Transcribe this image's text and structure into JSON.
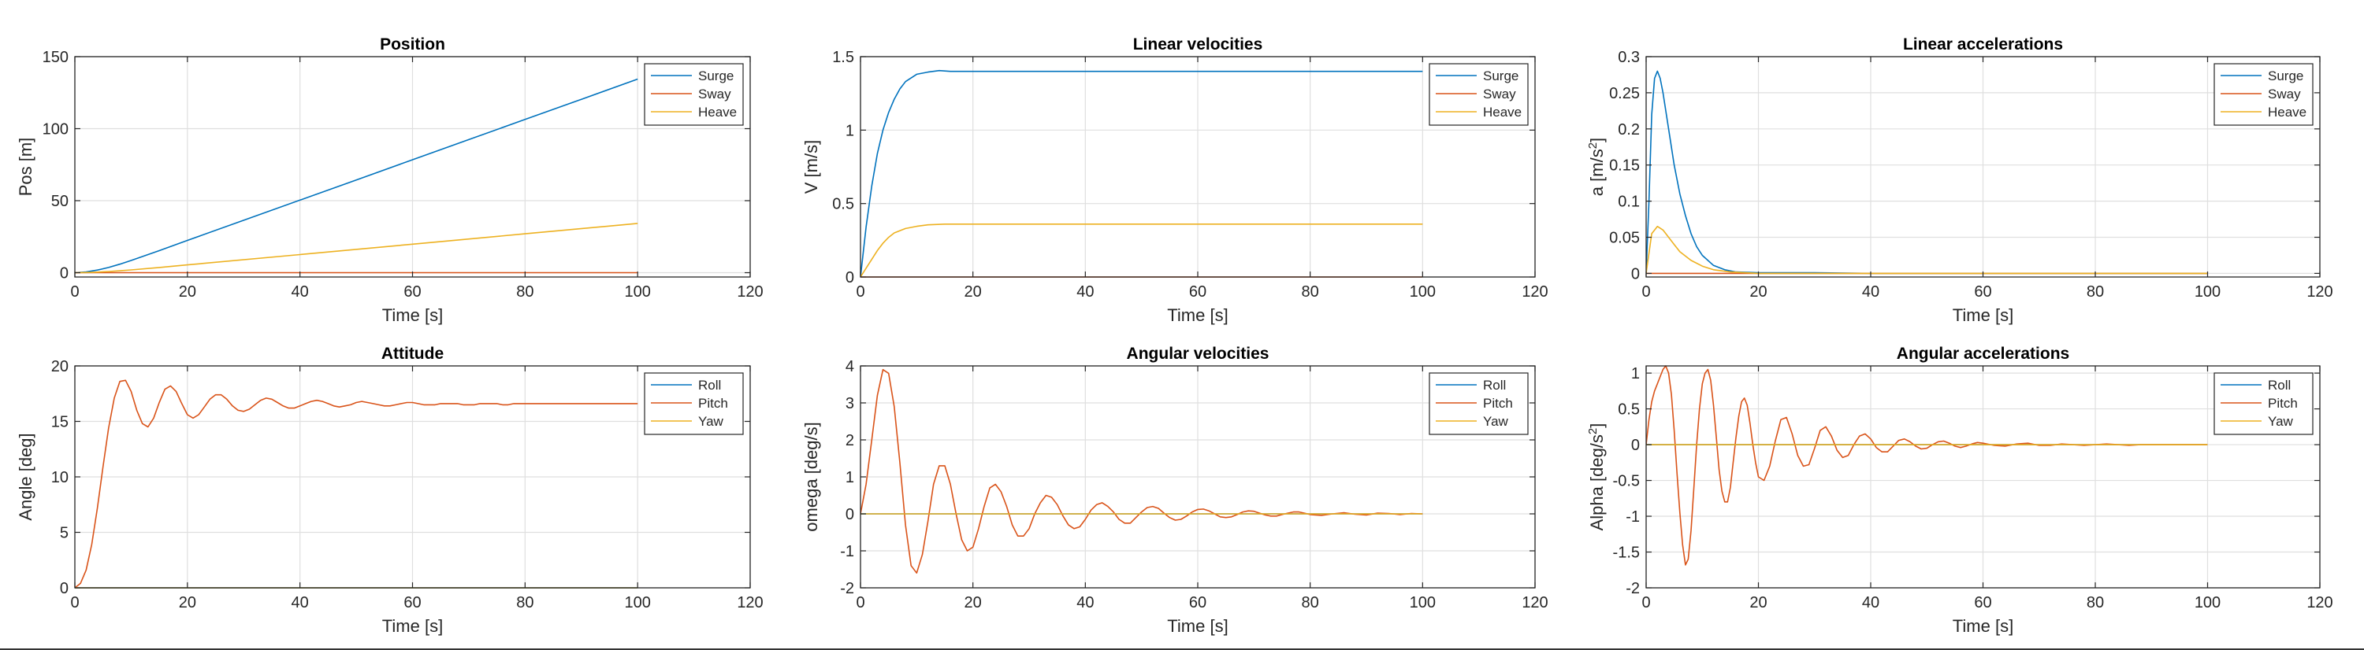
{
  "chart_data": [
    {
      "type": "line",
      "title": "Position",
      "xlabel": "Time [s]",
      "ylabel": "Pos [m]",
      "xlim": [
        0,
        120
      ],
      "ylim": [
        -3,
        150
      ],
      "xticks": [
        0,
        20,
        40,
        60,
        80,
        100,
        120
      ],
      "yticks": [
        0,
        50,
        100,
        150
      ],
      "legend": "top-right",
      "grid": true,
      "series": [
        {
          "name": "Surge",
          "color": "#0072bd",
          "x": [
            0,
            2,
            4,
            6,
            8,
            10,
            15,
            20,
            30,
            40,
            50,
            60,
            70,
            80,
            90,
            100
          ],
          "y": [
            0,
            0.5,
            1.8,
            3.6,
            5.9,
            8.5,
            15.3,
            22.4,
            36.4,
            50.4,
            64.4,
            78.4,
            92.4,
            106.4,
            120.4,
            134.4
          ]
        },
        {
          "name": "Sway",
          "color": "#d95319",
          "x": [
            0,
            100
          ],
          "y": [
            0,
            0
          ]
        },
        {
          "name": "Heave",
          "color": "#edb120",
          "x": [
            0,
            2,
            4,
            6,
            8,
            10,
            15,
            20,
            40,
            60,
            80,
            100
          ],
          "y": [
            0,
            0.1,
            0.4,
            0.8,
            1.3,
            1.9,
            3.6,
            5.4,
            12.6,
            19.8,
            27.0,
            34.2
          ]
        }
      ]
    },
    {
      "type": "line",
      "title": "Linear velocities",
      "xlabel": "Time [s]",
      "ylabel": "V [m/s]",
      "xlim": [
        0,
        120
      ],
      "ylim": [
        0,
        1.5
      ],
      "xticks": [
        0,
        20,
        40,
        60,
        80,
        100,
        120
      ],
      "yticks": [
        0,
        0.5,
        1,
        1.5
      ],
      "legend": "top-right",
      "grid": true,
      "series": [
        {
          "name": "Surge",
          "color": "#0072bd",
          "x": [
            0,
            1,
            2,
            3,
            4,
            5,
            6,
            7,
            8,
            10,
            12,
            14,
            16,
            20,
            30,
            40,
            60,
            80,
            100
          ],
          "y": [
            0,
            0.34,
            0.62,
            0.84,
            1.0,
            1.12,
            1.21,
            1.28,
            1.33,
            1.38,
            1.395,
            1.405,
            1.4,
            1.4,
            1.4,
            1.4,
            1.4,
            1.4,
            1.4
          ]
        },
        {
          "name": "Sway",
          "color": "#d95319",
          "x": [
            0,
            100
          ],
          "y": [
            0,
            0
          ]
        },
        {
          "name": "Heave",
          "color": "#edb120",
          "x": [
            0,
            1,
            2,
            3,
            4,
            5,
            6,
            8,
            10,
            12,
            15,
            20,
            30,
            40,
            60,
            80,
            100
          ],
          "y": [
            0,
            0.06,
            0.12,
            0.18,
            0.23,
            0.27,
            0.3,
            0.33,
            0.345,
            0.355,
            0.36,
            0.36,
            0.36,
            0.36,
            0.36,
            0.36,
            0.36
          ]
        }
      ]
    },
    {
      "type": "line",
      "title": "Linear accelerations",
      "xlabel": "Time [s]",
      "ylabel": "a [m/s²]",
      "xlim": [
        0,
        120
      ],
      "ylim": [
        -0.005,
        0.3
      ],
      "xticks": [
        0,
        20,
        40,
        60,
        80,
        100,
        120
      ],
      "yticks": [
        0,
        0.05,
        0.1,
        0.15,
        0.2,
        0.25,
        0.3
      ],
      "legend": "top-right",
      "grid": true,
      "series": [
        {
          "name": "Surge",
          "color": "#0072bd",
          "x": [
            0,
            0.5,
            1,
            1.5,
            2,
            2.5,
            3,
            4,
            5,
            6,
            7,
            8,
            9,
            10,
            12,
            14,
            16,
            20,
            30,
            40,
            60,
            80,
            100
          ],
          "y": [
            0,
            0.1,
            0.22,
            0.27,
            0.28,
            0.27,
            0.25,
            0.2,
            0.15,
            0.11,
            0.08,
            0.055,
            0.037,
            0.025,
            0.011,
            0.005,
            0.002,
            0.001,
            0.001,
            0,
            0,
            0,
            0
          ]
        },
        {
          "name": "Sway",
          "color": "#d95319",
          "x": [
            0,
            100
          ],
          "y": [
            0,
            0
          ]
        },
        {
          "name": "Heave",
          "color": "#edb120",
          "x": [
            0,
            1,
            2,
            3,
            4,
            5,
            6,
            8,
            10,
            12,
            15,
            20,
            40,
            60,
            80,
            100
          ],
          "y": [
            0,
            0.055,
            0.065,
            0.06,
            0.05,
            0.04,
            0.03,
            0.018,
            0.01,
            0.005,
            0.002,
            0,
            0,
            0,
            0,
            0
          ]
        }
      ]
    },
    {
      "type": "line",
      "title": "Attitude",
      "xlabel": "Time [s]",
      "ylabel": "Angle [deg]",
      "xlim": [
        0,
        120
      ],
      "ylim": [
        0,
        20
      ],
      "xticks": [
        0,
        20,
        40,
        60,
        80,
        100,
        120
      ],
      "yticks": [
        0,
        5,
        10,
        15,
        20
      ],
      "legend": "top-right",
      "grid": true,
      "series": [
        {
          "name": "Roll",
          "color": "#0072bd",
          "x": [
            0,
            100
          ],
          "y": [
            0,
            0
          ]
        },
        {
          "name": "Pitch",
          "color": "#d95319",
          "x": [
            0,
            1,
            2,
            3,
            4,
            5,
            6,
            7,
            8,
            9,
            10,
            11,
            12,
            13,
            14,
            15,
            16,
            17,
            18,
            19,
            20,
            21,
            22,
            23,
            24,
            25,
            26,
            27,
            28,
            29,
            30,
            31,
            32,
            33,
            34,
            35,
            36,
            37,
            38,
            39,
            40,
            41,
            42,
            43,
            44,
            45,
            46,
            47,
            48,
            49,
            50,
            51,
            52,
            53,
            54,
            55,
            56,
            57,
            58,
            59,
            60,
            61,
            62,
            63,
            64,
            65,
            66,
            67,
            68,
            69,
            70,
            71,
            72,
            73,
            74,
            75,
            76,
            77,
            78,
            79,
            80,
            82,
            84,
            86,
            88,
            90,
            92,
            94,
            96,
            98,
            100
          ],
          "y": [
            0,
            0.4,
            1.6,
            3.9,
            7.2,
            10.9,
            14.4,
            17.1,
            18.6,
            18.7,
            17.7,
            16.0,
            14.8,
            14.5,
            15.3,
            16.7,
            17.9,
            18.2,
            17.7,
            16.6,
            15.6,
            15.3,
            15.6,
            16.3,
            17.0,
            17.4,
            17.4,
            17.0,
            16.4,
            16.0,
            15.9,
            16.1,
            16.5,
            16.9,
            17.1,
            17.0,
            16.7,
            16.4,
            16.2,
            16.2,
            16.4,
            16.6,
            16.8,
            16.9,
            16.8,
            16.6,
            16.4,
            16.3,
            16.4,
            16.5,
            16.7,
            16.8,
            16.7,
            16.6,
            16.5,
            16.4,
            16.4,
            16.5,
            16.6,
            16.7,
            16.7,
            16.6,
            16.5,
            16.5,
            16.5,
            16.6,
            16.6,
            16.6,
            16.6,
            16.5,
            16.5,
            16.5,
            16.6,
            16.6,
            16.6,
            16.6,
            16.5,
            16.5,
            16.6,
            16.6,
            16.6,
            16.6,
            16.6,
            16.6,
            16.6,
            16.6,
            16.6,
            16.6,
            16.6,
            16.6,
            16.6
          ]
        },
        {
          "name": "Yaw",
          "color": "#edb120",
          "x": [
            0,
            100
          ],
          "y": [
            0,
            0
          ]
        }
      ]
    },
    {
      "type": "line",
      "title": "Angular velocities",
      "xlabel": "Time [s]",
      "ylabel": "omega [deg/s]",
      "xlim": [
        0,
        120
      ],
      "ylim": [
        -2,
        4
      ],
      "xticks": [
        0,
        20,
        40,
        60,
        80,
        100,
        120
      ],
      "yticks": [
        -2,
        -1,
        0,
        1,
        2,
        3,
        4
      ],
      "legend": "top-right",
      "grid": true,
      "series": [
        {
          "name": "Roll",
          "color": "#0072bd",
          "x": [
            0,
            100
          ],
          "y": [
            0,
            0
          ]
        },
        {
          "name": "Pitch",
          "color": "#d95319",
          "x": [
            0,
            1,
            2,
            3,
            4,
            5,
            6,
            7,
            8,
            9,
            10,
            11,
            12,
            13,
            14,
            15,
            16,
            17,
            18,
            19,
            20,
            21,
            22,
            23,
            24,
            25,
            26,
            27,
            28,
            29,
            30,
            31,
            32,
            33,
            34,
            35,
            36,
            37,
            38,
            39,
            40,
            41,
            42,
            43,
            44,
            45,
            46,
            47,
            48,
            49,
            50,
            51,
            52,
            53,
            54,
            55,
            56,
            57,
            58,
            59,
            60,
            61,
            62,
            63,
            64,
            65,
            66,
            67,
            68,
            69,
            70,
            71,
            72,
            73,
            74,
            75,
            76,
            77,
            78,
            79,
            80,
            82,
            84,
            86,
            88,
            90,
            92,
            94,
            96,
            98,
            100
          ],
          "y": [
            0,
            0.8,
            2.0,
            3.2,
            3.9,
            3.8,
            2.9,
            1.4,
            -0.3,
            -1.4,
            -1.6,
            -1.1,
            -0.2,
            0.8,
            1.3,
            1.3,
            0.8,
            0.0,
            -0.7,
            -1.0,
            -0.9,
            -0.4,
            0.2,
            0.7,
            0.8,
            0.6,
            0.2,
            -0.3,
            -0.6,
            -0.6,
            -0.4,
            0.0,
            0.3,
            0.5,
            0.45,
            0.25,
            -0.05,
            -0.3,
            -0.4,
            -0.35,
            -0.15,
            0.1,
            0.25,
            0.3,
            0.2,
            0.05,
            -0.15,
            -0.25,
            -0.25,
            -0.1,
            0.05,
            0.17,
            0.2,
            0.15,
            0.02,
            -0.1,
            -0.17,
            -0.15,
            -0.06,
            0.05,
            0.12,
            0.13,
            0.08,
            0.0,
            -0.08,
            -0.1,
            -0.08,
            -0.02,
            0.05,
            0.08,
            0.07,
            0.02,
            -0.03,
            -0.06,
            -0.06,
            -0.02,
            0.02,
            0.05,
            0.05,
            0.02,
            -0.02,
            -0.04,
            0.0,
            0.03,
            -0.01,
            -0.03,
            0.02,
            0.01,
            -0.02,
            0.01,
            0.0
          ]
        },
        {
          "name": "Yaw",
          "color": "#edb120",
          "x": [
            0,
            100
          ],
          "y": [
            0,
            0
          ]
        }
      ]
    },
    {
      "type": "line",
      "title": "Angular accelerations",
      "xlabel": "Time [s]",
      "ylabel": "Alpha [deg/s²]",
      "xlim": [
        0,
        120
      ],
      "ylim": [
        -2,
        1.1
      ],
      "xticks": [
        0,
        20,
        40,
        60,
        80,
        100,
        120
      ],
      "yticks": [
        -2,
        -1.5,
        -1,
        -0.5,
        0,
        0.5,
        1
      ],
      "legend": "top-right",
      "grid": true,
      "series": [
        {
          "name": "Roll",
          "color": "#0072bd",
          "x": [
            0,
            100
          ],
          "y": [
            0,
            0
          ]
        },
        {
          "name": "Pitch",
          "color": "#d95319",
          "x": [
            0,
            0.5,
            1,
            1.5,
            2,
            2.5,
            3,
            3.5,
            4,
            4.5,
            5,
            5.5,
            6,
            6.5,
            7,
            7.5,
            8,
            8.5,
            9,
            9.5,
            10,
            10.5,
            11,
            11.5,
            12,
            12.5,
            13,
            13.5,
            14,
            14.5,
            15,
            15.5,
            16,
            16.5,
            17,
            17.5,
            18,
            18.5,
            19,
            19.5,
            20,
            21,
            22,
            23,
            24,
            25,
            26,
            27,
            28,
            29,
            30,
            31,
            32,
            33,
            34,
            35,
            36,
            37,
            38,
            39,
            40,
            41,
            42,
            43,
            44,
            45,
            46,
            47,
            48,
            49,
            50,
            51,
            52,
            53,
            54,
            55,
            56,
            57,
            58,
            59,
            60,
            62,
            64,
            66,
            68,
            70,
            72,
            74,
            76,
            78,
            80,
            82,
            84,
            86,
            88,
            90,
            92,
            94,
            96,
            98,
            100
          ],
          "y": [
            0,
            0.35,
            0.6,
            0.75,
            0.85,
            0.95,
            1.05,
            1.1,
            1.0,
            0.7,
            0.2,
            -0.4,
            -0.95,
            -1.4,
            -1.68,
            -1.6,
            -1.2,
            -0.6,
            0.0,
            0.5,
            0.85,
            1.0,
            1.05,
            0.9,
            0.55,
            0.1,
            -0.35,
            -0.65,
            -0.8,
            -0.8,
            -0.6,
            -0.25,
            0.1,
            0.4,
            0.6,
            0.65,
            0.55,
            0.3,
            0.0,
            -0.25,
            -0.45,
            -0.5,
            -0.3,
            0.05,
            0.35,
            0.38,
            0.15,
            -0.15,
            -0.3,
            -0.28,
            -0.05,
            0.2,
            0.25,
            0.12,
            -0.08,
            -0.18,
            -0.15,
            0.0,
            0.12,
            0.15,
            0.08,
            -0.04,
            -0.1,
            -0.1,
            -0.02,
            0.06,
            0.08,
            0.04,
            -0.02,
            -0.06,
            -0.05,
            0.0,
            0.04,
            0.05,
            0.02,
            -0.02,
            -0.04,
            -0.02,
            0.01,
            0.03,
            0.02,
            -0.01,
            -0.02,
            0.01,
            0.02,
            -0.01,
            -0.01,
            0.01,
            0.0,
            -0.01,
            0.0,
            0.01,
            0.0,
            -0.01,
            0.0,
            0.0,
            0.0,
            0.0,
            0.0,
            0.0,
            0.0
          ]
        },
        {
          "name": "Yaw",
          "color": "#edb120",
          "x": [
            0,
            100
          ],
          "y": [
            0,
            0
          ]
        }
      ]
    }
  ]
}
